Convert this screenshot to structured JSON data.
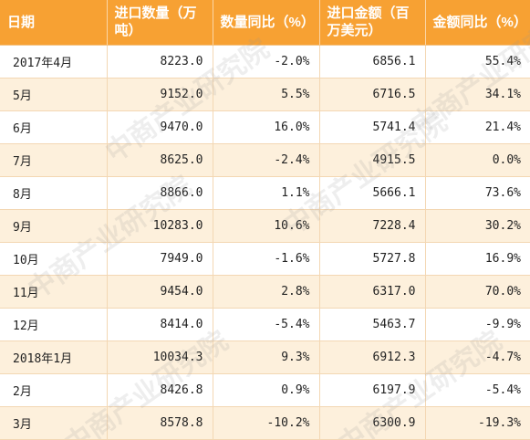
{
  "table": {
    "headers": [
      "日期",
      "进口数量（万吨）",
      "数量同比（%）",
      "进口金额（百万美元）",
      "金额同比（%）"
    ],
    "rows": [
      {
        "date": "2017年4月",
        "quantity": "8223.0",
        "quantity_yoy": "-2.0%",
        "amount": "6856.1",
        "amount_yoy": "55.4%"
      },
      {
        "date": "5月",
        "quantity": "9152.0",
        "quantity_yoy": "5.5%",
        "amount": "6716.5",
        "amount_yoy": "34.1%"
      },
      {
        "date": "6月",
        "quantity": "9470.0",
        "quantity_yoy": "16.0%",
        "amount": "5741.4",
        "amount_yoy": "21.4%"
      },
      {
        "date": "7月",
        "quantity": "8625.0",
        "quantity_yoy": "-2.4%",
        "amount": "4915.5",
        "amount_yoy": "0.0%"
      },
      {
        "date": "8月",
        "quantity": "8866.0",
        "quantity_yoy": "1.1%",
        "amount": "5666.1",
        "amount_yoy": "73.6%"
      },
      {
        "date": "9月",
        "quantity": "10283.0",
        "quantity_yoy": "10.6%",
        "amount": "7228.4",
        "amount_yoy": "30.2%"
      },
      {
        "date": "10月",
        "quantity": "7949.0",
        "quantity_yoy": "-1.6%",
        "amount": "5727.8",
        "amount_yoy": "16.9%"
      },
      {
        "date": "11月",
        "quantity": "9454.0",
        "quantity_yoy": "2.8%",
        "amount": "6317.0",
        "amount_yoy": "70.0%"
      },
      {
        "date": "12月",
        "quantity": "8414.0",
        "quantity_yoy": "-5.4%",
        "amount": "5463.7",
        "amount_yoy": "-9.9%"
      },
      {
        "date": "2018年1月",
        "quantity": "10034.3",
        "quantity_yoy": "9.3%",
        "amount": "6912.3",
        "amount_yoy": "-4.7%"
      },
      {
        "date": "2月",
        "quantity": "8426.8",
        "quantity_yoy": "0.9%",
        "amount": "6197.9",
        "amount_yoy": "-5.4%"
      },
      {
        "date": "3月",
        "quantity": "8578.8",
        "quantity_yoy": "-10.2%",
        "amount": "6300.9",
        "amount_yoy": "-19.3%"
      }
    ]
  },
  "watermark": {
    "text": "中商产业研究院"
  },
  "colors": {
    "header_bg": "#f7a133",
    "header_text": "#ffffff",
    "row_alt_bg": "#fdf0dc",
    "row_bg": "#ffffff"
  }
}
